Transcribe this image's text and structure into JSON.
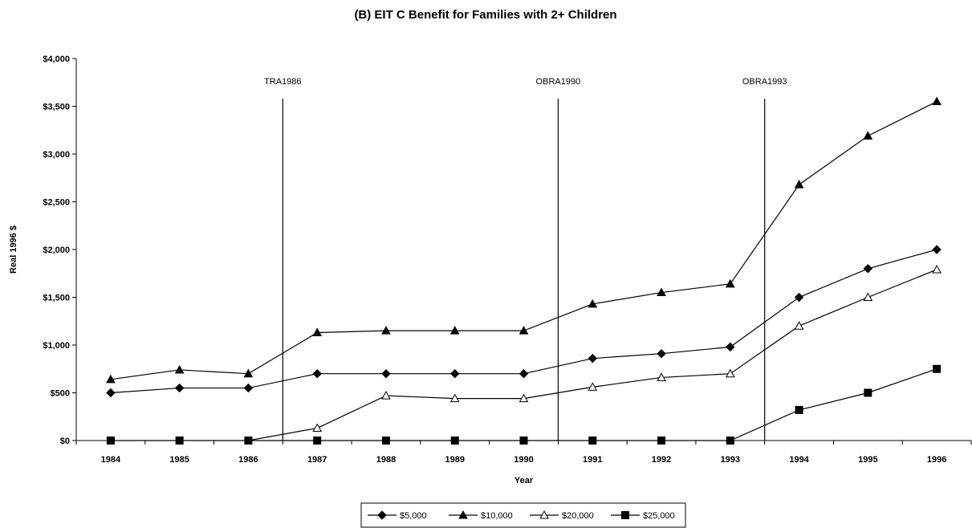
{
  "chart_data": {
    "type": "line",
    "title": "(B) EIT C Benefit for Families with 2+ Children",
    "xlabel": "Year",
    "ylabel": "Real 1996 $",
    "ylim": [
      0,
      4000
    ],
    "yticks": [
      0,
      500,
      1000,
      1500,
      2000,
      2500,
      3000,
      3500,
      4000
    ],
    "ytick_labels": [
      "$0",
      "$500",
      "$1,000",
      "$1,500",
      "$2,000",
      "$2,500",
      "$3,000",
      "$3,500",
      "$4,000"
    ],
    "categories": [
      "1984",
      "1985",
      "1986",
      "1987",
      "1988",
      "1989",
      "1990",
      "1991",
      "1992",
      "1993",
      "1994",
      "1995",
      "1996"
    ],
    "grid": false,
    "legend_position": "bottom",
    "series": [
      {
        "name": "$5,000",
        "marker": "diamond-filled",
        "color": "#000000",
        "values": [
          500,
          550,
          550,
          700,
          700,
          700,
          700,
          860,
          910,
          980,
          1500,
          1800,
          2000
        ]
      },
      {
        "name": "$10,000",
        "marker": "triangle-filled",
        "color": "#000000",
        "values": [
          640,
          740,
          700,
          1130,
          1150,
          1150,
          1150,
          1430,
          1550,
          1640,
          2680,
          3190,
          3550
        ]
      },
      {
        "name": "$20,000",
        "marker": "triangle-open",
        "color": "#000000",
        "values": [
          null,
          null,
          null,
          130,
          470,
          440,
          440,
          560,
          660,
          700,
          1200,
          1500,
          1790
        ]
      },
      {
        "name": "$25,000",
        "marker": "square-filled",
        "color": "#000000",
        "values": [
          0,
          0,
          0,
          0,
          0,
          0,
          0,
          0,
          0,
          0,
          320,
          500,
          750
        ]
      }
    ],
    "extra_segments": [
      {
        "series": "$20,000",
        "from": [
          "1986",
          0
        ],
        "to": [
          "1987",
          130
        ]
      }
    ],
    "events": [
      {
        "label": "TRA1986",
        "at": 1986.5
      },
      {
        "label": "OBRA1990",
        "at": 1990.5
      },
      {
        "label": "OBRA1993",
        "at": 1993.5
      }
    ]
  }
}
